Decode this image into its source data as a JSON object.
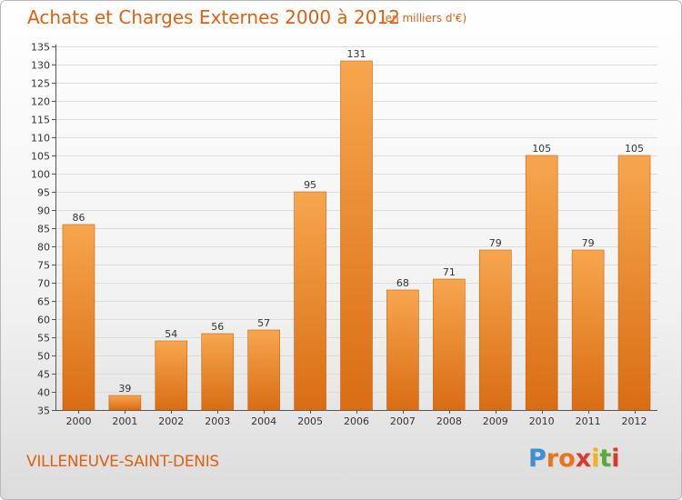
{
  "title": "Achats et Charges Externes 2000 à 2012",
  "subtitle": "(en milliers d'€)",
  "city": "VILLENEUVE-SAINT-DENIS",
  "logo": {
    "letters": [
      "P",
      "r",
      "o",
      "x",
      "i",
      "t",
      "i"
    ],
    "colors": [
      "#3b8fd4",
      "#e8751a",
      "#e8751a",
      "#d83a2c",
      "#f2b21a",
      "#58a83a",
      "#d83a2c"
    ]
  },
  "colors": {
    "bar_top": "#f7a64e",
    "bar_bottom": "#d96d14",
    "bar_edge": "#c8640f",
    "text": "#e06010"
  },
  "chart_data": {
    "type": "bar",
    "categories": [
      "2000",
      "2001",
      "2002",
      "2003",
      "2004",
      "2005",
      "2006",
      "2007",
      "2008",
      "2009",
      "2010",
      "2011",
      "2012"
    ],
    "values": [
      86,
      39,
      54,
      56,
      57,
      95,
      131,
      68,
      71,
      79,
      105,
      79,
      105
    ],
    "ylim": [
      35,
      135
    ],
    "ytick_step": 5,
    "grid": true
  }
}
